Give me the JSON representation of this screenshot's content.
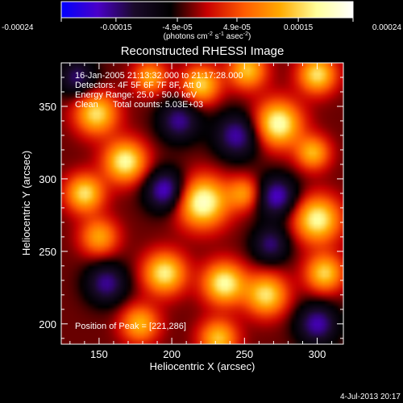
{
  "chart_data": {
    "type": "heatmap",
    "title": "Reconstructed RHESSI Image",
    "xlabel": "Heliocentric X (arcsec)",
    "ylabel": "Heliocentric Y (arcsec)",
    "xlim": [
      124,
      318
    ],
    "ylim": [
      186,
      380
    ],
    "x_ticks": [
      150,
      200,
      250,
      300
    ],
    "y_ticks": [
      200,
      250,
      300,
      350
    ],
    "colorbar": {
      "range": [
        -0.00024,
        0.00024
      ],
      "ticks": [
        -0.00024,
        -0.00015,
        -4.9e-05,
        4.9e-05,
        0.00015,
        0.00024
      ],
      "tick_labels": [
        "-0.00024",
        "-0.00015",
        "-4.9e-05",
        "4.9e-05",
        "0.00015",
        "0.00024"
      ],
      "units_label": "(photons cm-2 s-1 asec-2)",
      "colormap": [
        "#0000ff",
        "#4a00c8",
        "#1a0a2a",
        "#000000",
        "#c80000",
        "#ff5a00",
        "#ffaa00",
        "#ffff9a",
        "#ffffff"
      ]
    },
    "annotations": [
      "16-Jan-2005 21:13:32.000 to 21:17:28.000",
      "Detectors: 4F 5F 6F 7F 8F, Att 0",
      "Energy Range: 25.0 - 50.0 keV",
      "Clean      Total counts: 5.03E+03",
      "Position of Peak = [221,286]"
    ],
    "peak": {
      "x": 221,
      "y": 286
    },
    "sources": [
      {
        "x": 221,
        "y": 284,
        "amp": 1.0,
        "w": 12
      },
      {
        "x": 273,
        "y": 338,
        "amp": 0.95,
        "w": 11
      },
      {
        "x": 168,
        "y": 312,
        "amp": 0.9,
        "w": 10
      },
      {
        "x": 300,
        "y": 272,
        "amp": 0.9,
        "w": 11
      },
      {
        "x": 148,
        "y": 345,
        "amp": 0.8,
        "w": 10
      },
      {
        "x": 140,
        "y": 290,
        "amp": 0.8,
        "w": 9
      },
      {
        "x": 195,
        "y": 235,
        "amp": 0.85,
        "w": 10
      },
      {
        "x": 236,
        "y": 228,
        "amp": 0.9,
        "w": 10
      },
      {
        "x": 265,
        "y": 220,
        "amp": 0.8,
        "w": 10
      },
      {
        "x": 305,
        "y": 235,
        "amp": 0.75,
        "w": 9
      },
      {
        "x": 220,
        "y": 365,
        "amp": 0.75,
        "w": 9
      },
      {
        "x": 252,
        "y": 375,
        "amp": 0.7,
        "w": 9
      },
      {
        "x": 300,
        "y": 372,
        "amp": 0.8,
        "w": 9
      },
      {
        "x": 150,
        "y": 260,
        "amp": 0.6,
        "w": 9
      },
      {
        "x": 178,
        "y": 200,
        "amp": 0.65,
        "w": 9
      },
      {
        "x": 232,
        "y": 190,
        "amp": 0.7,
        "w": 9
      },
      {
        "x": 297,
        "y": 318,
        "amp": 0.65,
        "w": 8
      },
      {
        "x": 250,
        "y": 290,
        "amp": 0.55,
        "w": 8
      },
      {
        "x": 185,
        "y": 370,
        "amp": 0.6,
        "w": 8
      },
      {
        "x": 196,
        "y": 292,
        "amp": -0.7,
        "w": 10
      },
      {
        "x": 272,
        "y": 288,
        "amp": -0.65,
        "w": 10
      },
      {
        "x": 245,
        "y": 330,
        "amp": -0.6,
        "w": 11
      },
      {
        "x": 205,
        "y": 340,
        "amp": -0.55,
        "w": 10
      },
      {
        "x": 155,
        "y": 228,
        "amp": -0.55,
        "w": 10
      },
      {
        "x": 300,
        "y": 200,
        "amp": -0.6,
        "w": 10
      },
      {
        "x": 268,
        "y": 255,
        "amp": -0.5,
        "w": 9
      },
      {
        "x": 135,
        "y": 370,
        "amp": -0.5,
        "w": 9
      }
    ]
  },
  "footer": {
    "timestamp": "4-Jul-2013 20:17"
  }
}
